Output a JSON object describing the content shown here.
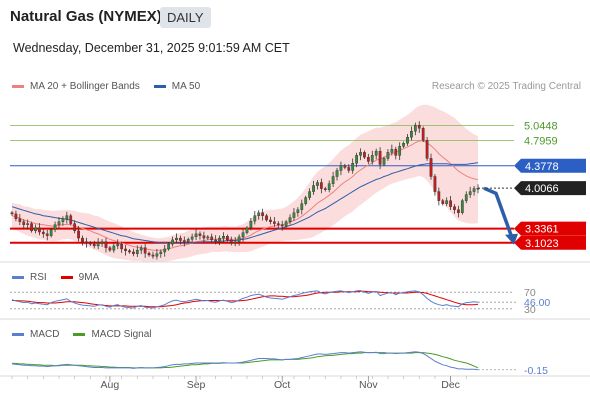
{
  "header": {
    "title": "Natural Gas (NYMEX)",
    "timeframe": "DAILY",
    "datetime": "Wednesday, December 31, 2025 9:01:59 AM CET"
  },
  "credit": "Research © 2025 Trading Central",
  "colors": {
    "price_line": "#2c5fc4",
    "support": "#e00000",
    "resistance": "#7dba4a",
    "ma20": "#f08080",
    "ma50": "#2c5fa8",
    "bollinger_fill": "#fbd7d7",
    "rsi": "#5a7fd0",
    "rsi_ma": "#e00000",
    "macd": "#5a7fd0",
    "macd_signal": "#4c9a2a",
    "forecast_arrow": "#2c5fa8"
  },
  "chart_data": [
    {
      "type": "candlestick",
      "name": "price",
      "legend": [
        {
          "label": "MA 20 + Bollinger Bands",
          "color": "#f08080"
        },
        {
          "label": "MA 50",
          "color": "#2c5fa8"
        }
      ],
      "x_labels": [
        "Aug",
        "Sep",
        "Oct",
        "Nov",
        "Dec"
      ],
      "ylim": [
        2.85,
        5.55
      ],
      "levels": [
        {
          "label": "5.0448",
          "value": 5.0448,
          "kind": "resistance"
        },
        {
          "label": "4.7959",
          "value": 4.7959,
          "kind": "resistance"
        },
        {
          "label": "4.3778",
          "value": 4.3778,
          "kind": "pivot"
        },
        {
          "label": "3.3361",
          "value": 3.3361,
          "kind": "support"
        },
        {
          "label": "3.1023",
          "value": 3.1023,
          "kind": "support"
        }
      ],
      "last_price": {
        "label": "4.0066",
        "value": 4.0066
      },
      "close": [
        3.58,
        3.5,
        3.45,
        3.4,
        3.42,
        3.3,
        3.35,
        3.28,
        3.25,
        3.22,
        3.32,
        3.4,
        3.45,
        3.5,
        3.55,
        3.42,
        3.3,
        3.18,
        3.12,
        3.1,
        3.08,
        3.05,
        3.1,
        3.12,
        3.02,
        2.98,
        3.05,
        3.08,
        3.0,
        2.97,
        2.95,
        2.92,
        2.98,
        3.02,
        2.93,
        2.9,
        2.88,
        2.92,
        2.95,
        3.0,
        3.08,
        3.15,
        3.18,
        3.14,
        3.12,
        3.16,
        3.2,
        3.25,
        3.22,
        3.18,
        3.2,
        3.15,
        3.13,
        3.18,
        3.21,
        3.15,
        3.1,
        3.12,
        3.2,
        3.27,
        3.35,
        3.46,
        3.55,
        3.6,
        3.55,
        3.48,
        3.45,
        3.42,
        3.4,
        3.38,
        3.45,
        3.52,
        3.6,
        3.65,
        3.75,
        3.85,
        3.95,
        4.05,
        4.1,
        4.0,
        3.98,
        4.08,
        4.2,
        4.3,
        4.38,
        4.35,
        4.3,
        4.42,
        4.55,
        4.6,
        4.52,
        4.45,
        4.55,
        4.62,
        4.4,
        4.5,
        4.6,
        4.65,
        4.55,
        4.7,
        4.75,
        4.85,
        4.95,
        5.05,
        5.0,
        4.8,
        4.5,
        4.2,
        3.95,
        3.8,
        3.75,
        3.8,
        3.7,
        3.65,
        3.6,
        3.8,
        3.9,
        3.95,
        4.0,
        4.0066
      ],
      "ma20": [
        3.55,
        3.53,
        3.51,
        3.48,
        3.46,
        3.44,
        3.42,
        3.41,
        3.4,
        3.39,
        3.38,
        3.38,
        3.39,
        3.4,
        3.41,
        3.4,
        3.38,
        3.36,
        3.34,
        3.32,
        3.3,
        3.27,
        3.25,
        3.22,
        3.19,
        3.16,
        3.14,
        3.12,
        3.1,
        3.08,
        3.06,
        3.04,
        3.03,
        3.02,
        3.0,
        2.99,
        2.98,
        2.98,
        2.98,
        2.99,
        3.0,
        3.02,
        3.04,
        3.05,
        3.06,
        3.08,
        3.1,
        3.12,
        3.13,
        3.14,
        3.15,
        3.16,
        3.16,
        3.16,
        3.17,
        3.17,
        3.16,
        3.16,
        3.17,
        3.18,
        3.2,
        3.23,
        3.27,
        3.3,
        3.33,
        3.35,
        3.37,
        3.38,
        3.39,
        3.4,
        3.42,
        3.44,
        3.47,
        3.5,
        3.54,
        3.59,
        3.64,
        3.7,
        3.76,
        3.8,
        3.84,
        3.89,
        3.94,
        4.0,
        4.06,
        4.11,
        4.15,
        4.2,
        4.26,
        4.31,
        4.35,
        4.39,
        4.43,
        4.47,
        4.49,
        4.52,
        4.55,
        4.58,
        4.6,
        4.63,
        4.66,
        4.69,
        4.72,
        4.76,
        4.79,
        4.79,
        4.76,
        4.71,
        4.65,
        4.58,
        4.52,
        4.47,
        4.41,
        4.35,
        4.29,
        4.25,
        4.21,
        4.18,
        4.16,
        4.15
      ],
      "ma50": [
        3.7,
        3.68,
        3.66,
        3.64,
        3.62,
        3.6,
        3.58,
        3.57,
        3.55,
        3.54,
        3.53,
        3.52,
        3.51,
        3.5,
        3.49,
        3.48,
        3.46,
        3.44,
        3.42,
        3.4,
        3.38,
        3.36,
        3.34,
        3.32,
        3.3,
        3.28,
        3.26,
        3.24,
        3.22,
        3.21,
        3.19,
        3.17,
        3.16,
        3.15,
        3.14,
        3.13,
        3.12,
        3.11,
        3.1,
        3.1,
        3.1,
        3.1,
        3.1,
        3.1,
        3.1,
        3.1,
        3.1,
        3.11,
        3.11,
        3.12,
        3.12,
        3.12,
        3.12,
        3.13,
        3.13,
        3.14,
        3.14,
        3.14,
        3.15,
        3.16,
        3.17,
        3.19,
        3.21,
        3.23,
        3.25,
        3.27,
        3.29,
        3.31,
        3.33,
        3.35,
        3.37,
        3.39,
        3.41,
        3.44,
        3.47,
        3.5,
        3.53,
        3.57,
        3.61,
        3.64,
        3.67,
        3.71,
        3.75,
        3.79,
        3.83,
        3.87,
        3.91,
        3.95,
        3.99,
        4.03,
        4.06,
        4.09,
        4.12,
        4.15,
        4.17,
        4.2,
        4.22,
        4.25,
        4.27,
        4.29,
        4.31,
        4.33,
        4.35,
        4.37,
        4.39,
        4.4,
        4.41,
        4.41,
        4.41,
        4.41,
        4.41,
        4.41,
        4.4,
        4.4,
        4.4,
        4.4,
        4.4,
        4.41,
        4.42,
        4.43
      ],
      "bb_width": [
        0.22,
        0.22,
        0.23,
        0.23,
        0.24,
        0.24,
        0.24,
        0.25,
        0.25,
        0.25,
        0.25,
        0.25,
        0.25,
        0.24,
        0.24,
        0.24,
        0.25,
        0.25,
        0.26,
        0.27,
        0.28,
        0.28,
        0.29,
        0.29,
        0.29,
        0.29,
        0.29,
        0.28,
        0.27,
        0.26,
        0.25,
        0.24,
        0.23,
        0.22,
        0.22,
        0.21,
        0.21,
        0.2,
        0.2,
        0.2,
        0.2,
        0.21,
        0.21,
        0.21,
        0.21,
        0.22,
        0.22,
        0.22,
        0.22,
        0.22,
        0.22,
        0.21,
        0.21,
        0.21,
        0.21,
        0.21,
        0.21,
        0.21,
        0.22,
        0.23,
        0.25,
        0.27,
        0.28,
        0.29,
        0.29,
        0.29,
        0.28,
        0.27,
        0.27,
        0.27,
        0.28,
        0.3,
        0.32,
        0.35,
        0.38,
        0.42,
        0.46,
        0.5,
        0.52,
        0.53,
        0.53,
        0.54,
        0.55,
        0.56,
        0.57,
        0.57,
        0.57,
        0.58,
        0.58,
        0.58,
        0.57,
        0.56,
        0.55,
        0.54,
        0.52,
        0.51,
        0.5,
        0.5,
        0.5,
        0.51,
        0.52,
        0.53,
        0.55,
        0.57,
        0.58,
        0.6,
        0.63,
        0.66,
        0.7,
        0.73,
        0.76,
        0.78,
        0.8,
        0.82,
        0.82,
        0.8,
        0.78,
        0.76,
        0.74,
        0.72
      ],
      "forecast": [
        4.0066,
        3.92,
        3.1023
      ]
    },
    {
      "type": "line",
      "name": "rsi",
      "legend": [
        {
          "label": "RSI",
          "color": "#5a7fd0"
        },
        {
          "label": "9MA",
          "color": "#e00000"
        }
      ],
      "levels": [
        {
          "label": "70",
          "value": 70
        },
        {
          "label": "30",
          "value": 30
        }
      ],
      "last_value": {
        "label": "46.00",
        "value": 46.0
      },
      "ylim": [
        20,
        80
      ],
      "rsi": [
        52,
        49,
        47,
        45,
        46,
        42,
        44,
        42,
        41,
        40,
        45,
        48,
        50,
        52,
        54,
        48,
        44,
        41,
        39,
        38,
        37,
        36,
        39,
        40,
        36,
        34,
        38,
        40,
        36,
        34,
        33,
        32,
        36,
        38,
        34,
        33,
        32,
        35,
        37,
        40,
        45,
        49,
        51,
        48,
        47,
        49,
        51,
        53,
        51,
        49,
        50,
        47,
        46,
        49,
        51,
        48,
        45,
        47,
        51,
        55,
        58,
        62,
        64,
        65,
        62,
        58,
        56,
        55,
        54,
        53,
        56,
        59,
        62,
        64,
        67,
        69,
        71,
        72,
        73,
        68,
        66,
        69,
        71,
        72,
        73,
        71,
        69,
        71,
        73,
        74,
        70,
        67,
        70,
        72,
        62,
        65,
        68,
        69,
        64,
        68,
        69,
        71,
        72,
        73,
        71,
        64,
        55,
        48,
        43,
        40,
        38,
        40,
        37,
        36,
        35,
        42,
        45,
        46,
        47,
        46
      ],
      "rsi_ma": [
        50,
        50,
        49,
        49,
        48,
        47,
        46,
        45,
        45,
        44,
        44,
        44,
        45,
        46,
        47,
        47,
        47,
        46,
        45,
        44,
        42,
        41,
        40,
        39,
        38,
        37,
        37,
        37,
        37,
        37,
        36,
        36,
        36,
        36,
        36,
        35,
        35,
        35,
        35,
        36,
        37,
        38,
        40,
        42,
        44,
        45,
        47,
        48,
        49,
        50,
        50,
        50,
        50,
        50,
        50,
        49,
        49,
        49,
        49,
        50,
        51,
        53,
        55,
        57,
        59,
        60,
        61,
        61,
        60,
        60,
        59,
        59,
        59,
        60,
        61,
        62,
        64,
        66,
        68,
        69,
        70,
        70,
        70,
        70,
        71,
        71,
        71,
        71,
        71,
        72,
        72,
        71,
        71,
        71,
        70,
        69,
        69,
        68,
        68,
        68,
        68,
        68,
        69,
        70,
        70,
        69,
        67,
        64,
        61,
        58,
        55,
        52,
        49,
        46,
        43,
        41,
        40,
        40,
        40,
        41
      ]
    },
    {
      "type": "line",
      "name": "macd",
      "legend": [
        {
          "label": "MACD",
          "color": "#5a7fd0"
        },
        {
          "label": "MACD Signal",
          "color": "#4c9a2a"
        }
      ],
      "last_value": {
        "label": "-0.15",
        "value": -0.15
      },
      "ylim": [
        -0.2,
        0.4
      ],
      "macd": [
        -0.02,
        -0.03,
        -0.04,
        -0.05,
        -0.05,
        -0.06,
        -0.06,
        -0.07,
        -0.07,
        -0.08,
        -0.07,
        -0.06,
        -0.05,
        -0.04,
        -0.03,
        -0.04,
        -0.05,
        -0.06,
        -0.07,
        -0.08,
        -0.09,
        -0.1,
        -0.1,
        -0.1,
        -0.11,
        -0.11,
        -0.11,
        -0.11,
        -0.11,
        -0.11,
        -0.11,
        -0.12,
        -0.11,
        -0.1,
        -0.11,
        -0.11,
        -0.11,
        -0.1,
        -0.09,
        -0.08,
        -0.06,
        -0.04,
        -0.03,
        -0.03,
        -0.02,
        -0.02,
        -0.01,
        0.0,
        0.0,
        0.0,
        0.0,
        0.0,
        0.0,
        0.0,
        0.01,
        0.0,
        0.0,
        0.0,
        0.01,
        0.02,
        0.04,
        0.06,
        0.08,
        0.1,
        0.1,
        0.1,
        0.09,
        0.09,
        0.08,
        0.07,
        0.08,
        0.08,
        0.09,
        0.1,
        0.12,
        0.14,
        0.16,
        0.18,
        0.2,
        0.2,
        0.19,
        0.2,
        0.21,
        0.22,
        0.23,
        0.23,
        0.22,
        0.23,
        0.24,
        0.25,
        0.24,
        0.23,
        0.23,
        0.24,
        0.21,
        0.21,
        0.22,
        0.22,
        0.21,
        0.22,
        0.22,
        0.23,
        0.24,
        0.25,
        0.24,
        0.21,
        0.16,
        0.1,
        0.04,
        0.0,
        -0.04,
        -0.06,
        -0.09,
        -0.11,
        -0.13,
        -0.13,
        -0.14,
        -0.14,
        -0.14,
        -0.15
      ],
      "signal": [
        -0.01,
        -0.01,
        -0.02,
        -0.02,
        -0.03,
        -0.03,
        -0.04,
        -0.04,
        -0.05,
        -0.05,
        -0.05,
        -0.06,
        -0.06,
        -0.05,
        -0.05,
        -0.05,
        -0.05,
        -0.05,
        -0.05,
        -0.06,
        -0.06,
        -0.07,
        -0.07,
        -0.08,
        -0.08,
        -0.09,
        -0.09,
        -0.1,
        -0.1,
        -0.1,
        -0.1,
        -0.11,
        -0.11,
        -0.11,
        -0.11,
        -0.11,
        -0.11,
        -0.11,
        -0.11,
        -0.1,
        -0.1,
        -0.09,
        -0.08,
        -0.07,
        -0.06,
        -0.05,
        -0.04,
        -0.04,
        -0.03,
        -0.02,
        -0.02,
        -0.01,
        -0.01,
        -0.01,
        0.0,
        0.0,
        0.0,
        0.0,
        0.0,
        0.0,
        0.01,
        0.02,
        0.03,
        0.04,
        0.05,
        0.06,
        0.07,
        0.07,
        0.07,
        0.07,
        0.08,
        0.08,
        0.08,
        0.08,
        0.09,
        0.1,
        0.11,
        0.12,
        0.14,
        0.15,
        0.16,
        0.17,
        0.17,
        0.18,
        0.19,
        0.2,
        0.21,
        0.21,
        0.22,
        0.22,
        0.23,
        0.23,
        0.23,
        0.23,
        0.23,
        0.23,
        0.22,
        0.22,
        0.22,
        0.22,
        0.22,
        0.22,
        0.22,
        0.23,
        0.23,
        0.23,
        0.22,
        0.21,
        0.19,
        0.17,
        0.14,
        0.12,
        0.09,
        0.06,
        0.04,
        0.02,
        0.0,
        -0.03,
        -0.07,
        -0.11
      ]
    }
  ]
}
